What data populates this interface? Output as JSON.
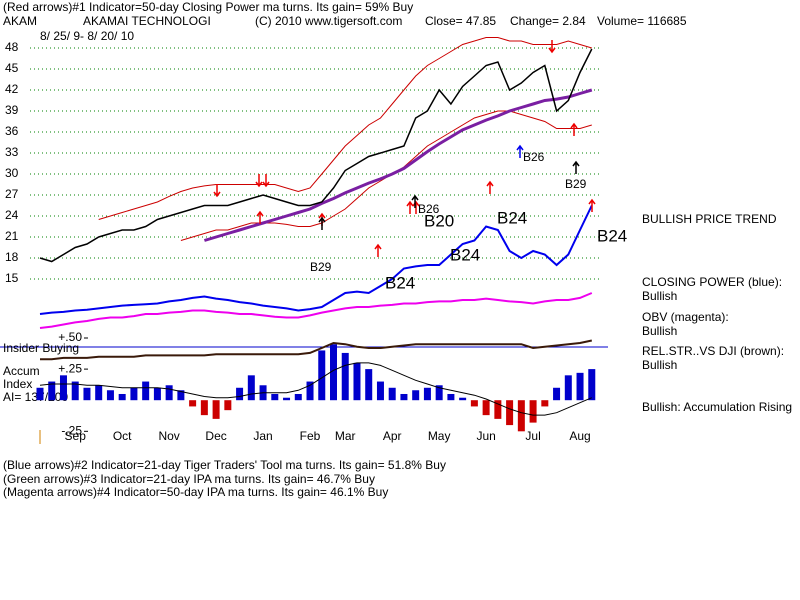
{
  "header": {
    "indicator": "(Red arrows)#1 Indicator=50-day Closing Power ma turns. Its gain= 59% Buy",
    "ticker": "AKAM",
    "company": "AKAMAI TECHNOLOGI",
    "copyright": "(C) 2010 www.tigersoft.com",
    "close": "Close= 47.85",
    "change": "Change= 2.84",
    "volume": "Volume= 116685",
    "date_range": "8/ 25/ 9- 8/ 20/ 10"
  },
  "chart_data": [
    {
      "type": "line",
      "categories": [
        null,
        null,
        null,
        "Sep",
        null,
        null,
        null,
        "Oct",
        null,
        null,
        null,
        "Nov",
        null,
        null,
        null,
        "Dec",
        null,
        null,
        null,
        "Jan",
        null,
        null,
        null,
        "Feb",
        null,
        null,
        "Mar",
        null,
        null,
        null,
        "Apr",
        null,
        null,
        null,
        "May",
        null,
        null,
        null,
        "Jun",
        null,
        null,
        null,
        "Jul",
        null,
        null,
        null,
        "Aug",
        null
      ],
      "ylim": [
        7,
        52
      ],
      "yticks": [
        15,
        18,
        21,
        24,
        27,
        30,
        33,
        36,
        39,
        42,
        45,
        48
      ],
      "grid": true,
      "grid_color": "#008000",
      "series": [
        {
          "color": "#cc0000",
          "width": 1,
          "values": [
            null,
            null,
            null,
            null,
            null,
            23.5,
            24,
            24.5,
            25,
            25.5,
            26,
            26.8,
            27.5,
            28,
            28.3,
            28.5,
            28.5,
            28.5,
            28.5,
            28.5,
            28.5,
            28,
            27.5,
            28,
            30,
            32,
            34,
            35.5,
            37,
            38,
            40,
            42,
            44,
            45.5,
            46.5,
            47.5,
            48.5,
            49,
            49.5,
            49.5,
            49,
            49,
            48.5,
            48.5,
            48.5,
            49,
            48.5,
            48
          ]
        },
        {
          "color": "#cc0000",
          "width": 1,
          "values": [
            null,
            null,
            null,
            null,
            null,
            null,
            null,
            null,
            null,
            null,
            null,
            null,
            20.5,
            21,
            21.5,
            22,
            22,
            22.5,
            23,
            23,
            23,
            22.8,
            22.5,
            22.5,
            23,
            24,
            25,
            26.5,
            28,
            29,
            30,
            31,
            32.5,
            34,
            35,
            36,
            37,
            38,
            38.5,
            39,
            39,
            38.5,
            38,
            37.5,
            36.5,
            36.5,
            36.5,
            37
          ]
        },
        {
          "color": "#7a1fa2",
          "width": 3,
          "values": [
            null,
            null,
            null,
            null,
            null,
            null,
            null,
            null,
            null,
            null,
            null,
            null,
            null,
            null,
            20.5,
            21,
            21.5,
            22,
            22.5,
            23,
            23.5,
            24,
            24.5,
            25,
            25.8,
            26.5,
            27.3,
            28,
            28.7,
            29.3,
            30,
            30.8,
            32,
            33.2,
            34.3,
            35.3,
            36.3,
            37,
            37.7,
            38.3,
            39,
            39.5,
            40,
            40.5,
            40.7,
            41,
            41.5,
            42
          ]
        },
        {
          "color": "#000000",
          "width": 1.5,
          "values": [
            18,
            17.5,
            18.5,
            19.5,
            20,
            21,
            21.5,
            22,
            22,
            22.5,
            23.5,
            24,
            24.5,
            25,
            25.5,
            25.5,
            25.5,
            26,
            26.5,
            27,
            26.5,
            26,
            25.5,
            25.5,
            26,
            28,
            30.5,
            31.5,
            32.5,
            33,
            33.5,
            34,
            38,
            39,
            42,
            40,
            42.5,
            44,
            45.5,
            46,
            42,
            43,
            44.5,
            45.5,
            39,
            40.5,
            44.5,
            47.85
          ]
        },
        {
          "color": "#ee00ee",
          "width": 2,
          "values": [
            8,
            8.2,
            8.5,
            8.8,
            9,
            9.3,
            9.5,
            9.5,
            9.7,
            10,
            10,
            10.2,
            10.3,
            10.5,
            10.5,
            10.3,
            10.2,
            10,
            10,
            9.8,
            9.6,
            9.5,
            9.5,
            9.8,
            10.2,
            10.5,
            10.8,
            11,
            11,
            11.2,
            11.3,
            11.5,
            11.5,
            11.7,
            11.8,
            11.8,
            12,
            12,
            12.2,
            12,
            11.8,
            11.7,
            11.5,
            11.8,
            12,
            12,
            12.3,
            13
          ]
        },
        {
          "color": "#0000ee",
          "width": 2,
          "values": [
            10,
            10.2,
            10.3,
            10.5,
            10.6,
            10.8,
            11,
            11.2,
            11.3,
            11.4,
            11.5,
            11.8,
            12,
            12.3,
            12.5,
            12.2,
            12,
            11.7,
            11.5,
            11.2,
            11,
            10.8,
            10.5,
            10.7,
            11,
            12,
            13,
            13.2,
            13,
            14,
            15,
            16.5,
            16.8,
            17,
            17,
            18.5,
            20,
            20.5,
            22.5,
            22,
            19,
            18,
            19,
            18.5,
            17,
            18.5,
            22,
            25.5
          ]
        }
      ],
      "annotations": [
        "B29",
        "B26",
        "B20",
        "B24",
        "B24",
        "B24",
        "B24",
        "B26",
        "B29"
      ]
    },
    {
      "type": "bar",
      "color": "#0000cc",
      "negative_color": "#cc0000",
      "ylim": [
        -0.36,
        0.5
      ],
      "yticks": [
        {
          "value": 0.5,
          "label": "+.50"
        },
        {
          "value": 0.25,
          "label": "+.25"
        },
        {
          "value": -0.25,
          "label": "-.25"
        }
      ],
      "values": [
        0.1,
        0.15,
        0.2,
        0.15,
        0.1,
        0.12,
        0.08,
        0.05,
        0.1,
        0.15,
        0.1,
        0.12,
        0.08,
        -0.05,
        -0.12,
        -0.15,
        -0.08,
        0.1,
        0.2,
        0.12,
        0.05,
        0.02,
        0.05,
        0.15,
        0.4,
        0.45,
        0.38,
        0.3,
        0.25,
        0.15,
        0.1,
        0.05,
        0.08,
        0.1,
        0.12,
        0.05,
        0.02,
        -0.05,
        -0.12,
        -0.15,
        -0.2,
        -0.25,
        -0.18,
        -0.05,
        0.1,
        0.2,
        0.22,
        0.25
      ],
      "series": [
        {
          "color": "#000000",
          "width": 1,
          "values": [
            0.12,
            0.13,
            0.13,
            0.13,
            0.12,
            0.12,
            0.11,
            0.1,
            0.1,
            0.1,
            0.1,
            0.09,
            0.07,
            0.05,
            0.03,
            0.02,
            0.02,
            0.03,
            0.05,
            0.06,
            0.06,
            0.06,
            0.08,
            0.12,
            0.18,
            0.24,
            0.28,
            0.3,
            0.3,
            0.28,
            0.24,
            0.2,
            0.16,
            0.13,
            0.1,
            0.08,
            0.06,
            0.04,
            0.01,
            -0.03,
            -0.07,
            -0.1,
            -0.12,
            -0.12,
            -0.1,
            -0.06,
            -0.02,
            0.02
          ]
        },
        {
          "color": "#3a1a0a",
          "width": 2,
          "values": [
            0.33,
            0.33,
            0.34,
            0.34,
            0.34,
            0.35,
            0.35,
            0.35,
            0.35,
            0.36,
            0.36,
            0.36,
            0.36,
            0.36,
            0.36,
            0.37,
            0.37,
            0.37,
            0.37,
            0.37,
            0.37,
            0.37,
            0.37,
            0.38,
            0.42,
            0.46,
            0.45,
            0.43,
            0.42,
            0.42,
            0.43,
            0.44,
            0.45,
            0.45,
            0.45,
            0.45,
            0.45,
            0.45,
            0.45,
            0.45,
            0.45,
            0.45,
            0.42,
            0.43,
            0.44,
            0.45,
            0.46,
            0.48
          ]
        }
      ]
    }
  ],
  "labels": {
    "trend": "BULLISH PRICE TREND",
    "cp": "CLOSING POWER (blue):",
    "cp_state": "Bullish",
    "obv": "OBV (magenta):",
    "obv_state": "Bullish",
    "rs": "REL.STR..VS DJI (brown):",
    "rs_state": "Bullish",
    "accum_state": "Bullish: Accumulation Rising",
    "insider": "Insider Buying",
    "accum": "Accum",
    "index": "Index",
    "ai": "AI= 137/200"
  },
  "footer": [
    "(Blue arrows)#2 Indicator=21-day Tiger Traders' Tool ma turns. Its gain= 51.8% Buy",
    "(Green arrows)#3 Indicator=21-day IPA ma turns. Its gain= 46.7% Buy",
    "(Magenta arrows)#4 Indicator=50-day IPA ma turns. Its gain= 46.1% Buy"
  ]
}
